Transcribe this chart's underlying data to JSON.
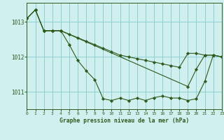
{
  "title": "Graphe pression niveau de la mer (hPa)",
  "background_color": "#d0f0f0",
  "grid_color": "#90d0d0",
  "line_color": "#2d5a1b",
  "xlim": [
    0,
    23
  ],
  "ylim": [
    1010.5,
    1013.55
  ],
  "yticks": [
    1011,
    1012,
    1013
  ],
  "xticks": [
    0,
    1,
    2,
    3,
    4,
    5,
    6,
    7,
    8,
    9,
    10,
    11,
    12,
    13,
    14,
    15,
    16,
    17,
    18,
    19,
    20,
    21,
    22,
    23
  ],
  "series": [
    {
      "x": [
        0,
        1,
        2,
        3,
        4,
        5,
        6,
        7,
        8,
        9,
        10,
        11,
        12,
        13,
        14,
        15,
        16,
        17,
        18,
        19,
        20,
        21,
        22,
        23
      ],
      "y": [
        1013.1,
        1013.35,
        1012.75,
        1012.75,
        1012.75,
        1012.65,
        1012.55,
        1012.45,
        1012.35,
        1012.25,
        1012.15,
        1012.05,
        1012.0,
        1011.95,
        1011.9,
        1011.85,
        1011.8,
        1011.75,
        1011.7,
        1012.1,
        1012.1,
        1012.05,
        1012.05,
        1012.0
      ]
    },
    {
      "x": [
        0,
        1,
        2,
        3,
        4,
        5,
        6,
        7,
        8,
        9,
        10,
        11,
        12,
        13,
        14,
        15,
        16,
        17,
        18,
        19,
        20,
        21,
        22,
        23
      ],
      "y": [
        1013.1,
        1013.35,
        1012.75,
        1012.75,
        1012.75,
        1012.35,
        1011.9,
        1011.6,
        1011.35,
        1010.8,
        1010.75,
        1010.82,
        1010.75,
        1010.82,
        1010.75,
        1010.83,
        1010.88,
        1010.82,
        1010.82,
        1010.75,
        1010.8,
        1011.3,
        1012.05,
        1012.0
      ]
    },
    {
      "x": [
        0,
        1,
        2,
        3,
        4,
        19,
        20,
        21,
        22,
        23
      ],
      "y": [
        1013.1,
        1013.35,
        1012.75,
        1012.75,
        1012.75,
        1011.15,
        1011.65,
        1012.05,
        1012.05,
        1012.0
      ]
    }
  ]
}
